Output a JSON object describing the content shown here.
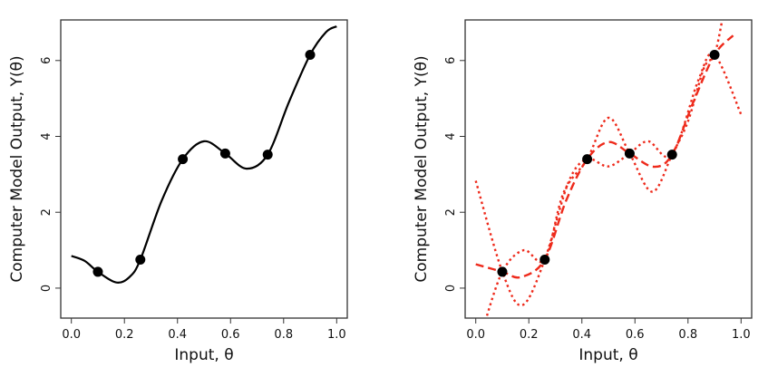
{
  "chart_data": [
    {
      "type": "line",
      "xlabel": "Input, θ",
      "ylabel": "Computer Model Output, Y(θ)",
      "xlim": [
        -0.04,
        1.04
      ],
      "ylim": [
        -0.79,
        7.07
      ],
      "xticks": [
        "0.0",
        "0.2",
        "0.4",
        "0.6",
        "0.8",
        "1.0"
      ],
      "yticks": [
        "0",
        "2",
        "4",
        "6"
      ],
      "grid": false,
      "points": {
        "x": [
          0.1,
          0.26,
          0.42,
          0.58,
          0.74,
          0.9
        ],
        "y": [
          0.43,
          0.75,
          3.4,
          3.55,
          3.52,
          6.15
        ],
        "color": "#000000"
      },
      "series": [
        {
          "style": "solid",
          "color": "#000000",
          "x": [
            0.0,
            0.05,
            0.1,
            0.17,
            0.22,
            0.26,
            0.34,
            0.42,
            0.5,
            0.58,
            0.66,
            0.74,
            0.82,
            0.9,
            0.96,
            1.0
          ],
          "y": [
            0.85,
            0.72,
            0.43,
            0.15,
            0.3,
            0.75,
            2.3,
            3.4,
            3.87,
            3.55,
            3.15,
            3.52,
            4.9,
            6.15,
            6.75,
            6.9
          ]
        }
      ]
    },
    {
      "type": "line",
      "xlabel": "Input, θ",
      "ylabel": "Computer Model Output, Y(θ)",
      "xlim": [
        -0.04,
        1.04
      ],
      "ylim": [
        -0.79,
        7.07
      ],
      "xticks": [
        "0.0",
        "0.2",
        "0.4",
        "0.6",
        "0.8",
        "1.0"
      ],
      "yticks": [
        "0",
        "2",
        "4",
        "6"
      ],
      "grid": false,
      "points": {
        "x": [
          0.1,
          0.26,
          0.42,
          0.58,
          0.74,
          0.9
        ],
        "y": [
          0.43,
          0.75,
          3.4,
          3.55,
          3.52,
          6.15
        ],
        "color": "#000000"
      },
      "series": [
        {
          "style": "dashed",
          "color": "#ee2a1b",
          "x": [
            0.0,
            0.1,
            0.17,
            0.26,
            0.34,
            0.42,
            0.5,
            0.58,
            0.67,
            0.74,
            0.82,
            0.9,
            0.97
          ],
          "y": [
            0.63,
            0.43,
            0.29,
            0.75,
            2.3,
            3.4,
            3.85,
            3.55,
            3.2,
            3.52,
            4.9,
            6.15,
            6.66
          ]
        },
        {
          "style": "dotted",
          "color": "#ee2a1b",
          "x": [
            0.03,
            0.1,
            0.18,
            0.26,
            0.33,
            0.42,
            0.5,
            0.58,
            0.665,
            0.74,
            0.8,
            0.86,
            0.9,
            0.93
          ],
          "y": [
            -1.0,
            0.43,
            1.0,
            0.75,
            2.5,
            3.4,
            4.49,
            3.55,
            2.54,
            3.52,
            4.4,
            5.8,
            6.15,
            7.1
          ]
        },
        {
          "style": "dotted",
          "color": "#ee2a1b",
          "x": [
            0.0,
            0.1,
            0.175,
            0.26,
            0.35,
            0.42,
            0.5,
            0.58,
            0.65,
            0.74,
            0.84,
            0.9,
            1.0
          ],
          "y": [
            2.83,
            0.43,
            -0.45,
            0.75,
            2.8,
            3.4,
            3.21,
            3.55,
            3.87,
            3.52,
            5.5,
            6.15,
            4.58
          ]
        }
      ]
    }
  ]
}
